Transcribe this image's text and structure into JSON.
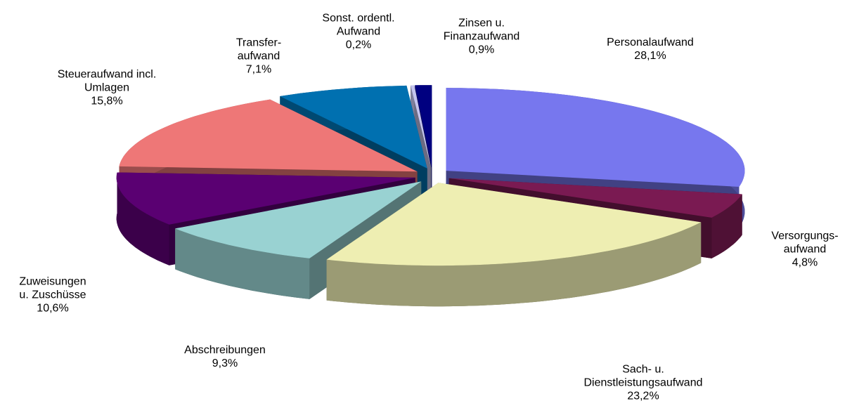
{
  "chart_data": {
    "type": "pie",
    "categories": [
      "Personalaufwand",
      "Versorgungs-\naufwand",
      "Sach- u.\nDienstleistungsaufwand",
      "Abschreibungen",
      "Zuweisungen\nu. Zuschüsse",
      "Steueraufwand incl.\nUmlagen",
      "Transfer-\naufwand",
      "Sonst. ordentl.\nAufwand",
      "Zinsen u.\nFinanzaufwand"
    ],
    "values": [
      28.1,
      4.8,
      23.2,
      9.3,
      10.6,
      15.8,
      7.1,
      0.2,
      0.9
    ],
    "value_labels": [
      "28,1%",
      "4,8%",
      "23,2%",
      "9,3%",
      "10,6%",
      "15,8%",
      "7,1%",
      "0,2%",
      "0,9%"
    ],
    "colors": [
      "#7777ee",
      "#7a1a52",
      "#eeeeb2",
      "#99d2d2",
      "#5a0072",
      "#ee7777",
      "#0070b0",
      "#c4c4ee",
      "#000080"
    ]
  }
}
